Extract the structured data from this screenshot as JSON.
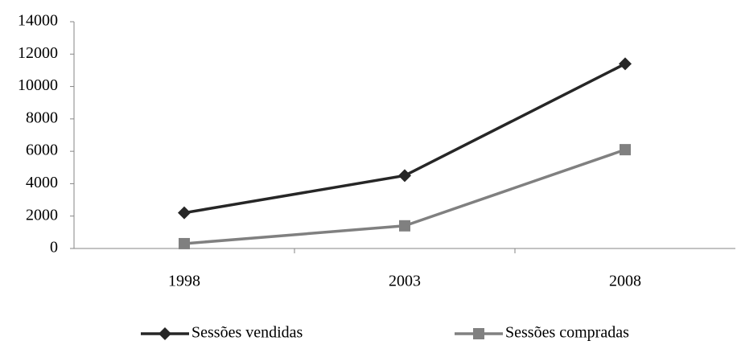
{
  "chart_data": {
    "type": "line",
    "categories": [
      "1998",
      "2003",
      "2008"
    ],
    "series": [
      {
        "name": "Sessões vendidas",
        "color": "#262626",
        "marker": "diamond",
        "values": [
          2200,
          4500,
          11400
        ]
      },
      {
        "name": "Sessões compradas",
        "color": "#808080",
        "marker": "square",
        "values": [
          300,
          1400,
          6100
        ]
      }
    ],
    "ylim": [
      0,
      14000
    ],
    "yticks": [
      0,
      2000,
      4000,
      6000,
      8000,
      10000,
      12000,
      14000
    ],
    "grid": false,
    "legend": "bottom"
  }
}
